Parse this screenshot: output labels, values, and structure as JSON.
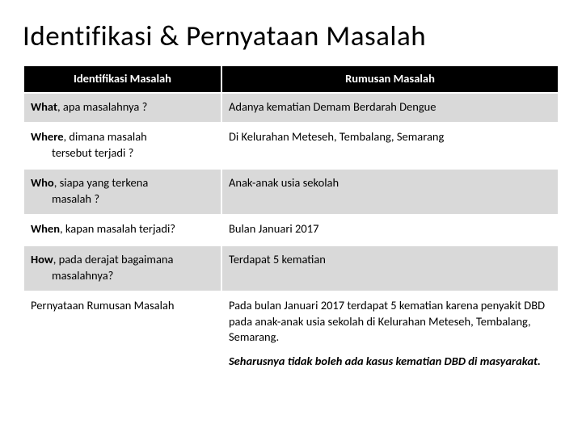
{
  "title": "Identifikasi & Pernyataan Masalah",
  "headers": {
    "left": "Identifikasi Masalah",
    "right": "Rumusan Masalah"
  },
  "rows": [
    {
      "keyBold": "What",
      "keyRest": ", apa masalahnya ?",
      "keyCont": "",
      "value": "Adanya kematian Demam Berdarah Dengue",
      "band": true
    },
    {
      "keyBold": "Where",
      "keyRest": ", dimana masalah",
      "keyCont": "tersebut terjadi ?",
      "value": "Di Kelurahan Meteseh, Tembalang, Semarang",
      "band": false
    },
    {
      "keyBold": "Who",
      "keyRest": ", siapa yang terkena",
      "keyCont": "masalah ?",
      "value": "Anak-anak usia sekolah",
      "band": true
    },
    {
      "keyBold": "When",
      "keyRest": ", kapan masalah terjadi?",
      "keyCont": "",
      "value": "Bulan Januari 2017",
      "band": false
    },
    {
      "keyBold": "How",
      "keyRest": ", pada derajat bagaimana",
      "keyCont": "masalahnya?",
      "value": "Terdapat 5 kematian",
      "band": true
    }
  ],
  "summary": {
    "label": "Pernyataan Rumusan Masalah",
    "value1": "Pada bulan Januari 2017 terdapat 5 kematian karena penyakit DBD pada anak-anak usia sekolah  di Kelurahan Meteseh, Tembalang, Semarang.",
    "value2": "Seharusnya tidak boleh ada kasus kematian DBD di masyarakat."
  }
}
